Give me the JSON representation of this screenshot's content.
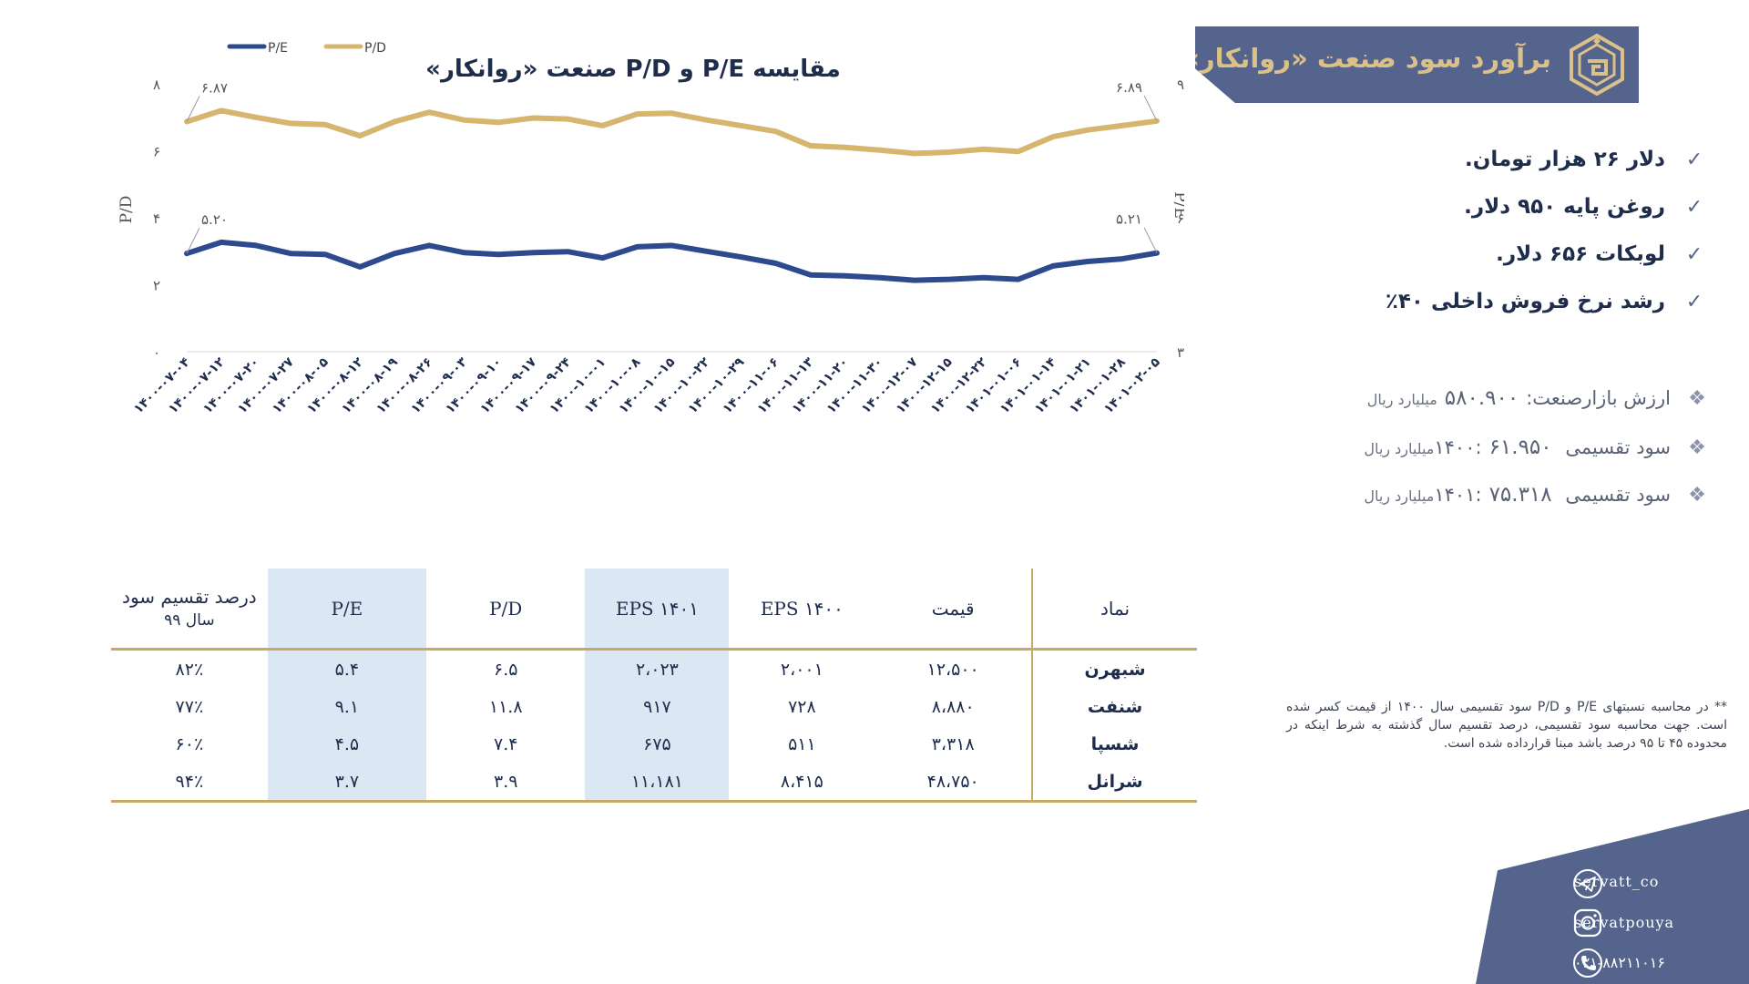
{
  "header": {
    "title": "برآورد سود صنعت «روانکار»"
  },
  "assumptions": [
    "دلار ۲۶ هزار تومان.",
    "روغن پایه ۹۵۰ دلار.",
    "لوبکات ۶۵۶ دلار.",
    "رشد نرخ فروش داخلی ۴۰٪"
  ],
  "stats": [
    {
      "label": "ارزش بازارصنعت:",
      "value": "۵۸۰.۹۰۰",
      "unit": "میلیارد ریال"
    },
    {
      "label": "سود تقسیمی ۱۴۰۰:",
      "value": "۶۱.۹۵۰",
      "unit": "میلیارد ریال"
    },
    {
      "label": "سود تقسیمی ۱۴۰۱:",
      "value": "۷۵.۳۱۸",
      "unit": "میلیارد ریال"
    }
  ],
  "chart_data": {
    "type": "line",
    "title": "مقایسه P/E و P/D صنعت «روانکار»",
    "xlabel": "",
    "ylabel_left": "P/D",
    "ylabel_right": "P/E",
    "categories": [
      "۱۴۰۰-۰۷-۰۴",
      "۱۴۰۰-۰۷-۱۲",
      "۱۴۰۰-۰۷-۲۰",
      "۱۴۰۰-۰۷-۲۷",
      "۱۴۰۰-۰۸-۰۵",
      "۱۴۰۰-۰۸-۱۲",
      "۱۴۰۰-۰۸-۱۹",
      "۱۴۰۰-۰۸-۲۶",
      "۱۴۰۰-۰۹-۰۳",
      "۱۴۰۰-۰۹-۱۰",
      "۱۴۰۰-۰۹-۱۷",
      "۱۴۰۰-۰۹-۲۴",
      "۱۴۰۰-۱۰-۰۱",
      "۱۴۰۰-۱۰-۰۸",
      "۱۴۰۰-۱۰-۱۵",
      "۱۴۰۰-۱۰-۲۲",
      "۱۴۰۰-۱۰-۲۹",
      "۱۴۰۰-۱۱-۰۶",
      "۱۴۰۰-۱۱-۱۳",
      "۱۴۰۰-۱۱-۲۰",
      "۱۴۰۰-۱۱-۳۰",
      "۱۴۰۰-۱۲-۰۷",
      "۱۴۰۰-۱۲-۱۵",
      "۱۴۰۰-۱۲-۲۲",
      "۱۴۰۱-۰۱-۰۶",
      "۱۴۰۱-۰۱-۱۴",
      "۱۴۰۱-۰۱-۲۱",
      "۱۴۰۱-۰۱-۲۸",
      "۱۴۰۱-۰۲-۰۵"
    ],
    "left_axis": {
      "min": 0,
      "max": 8,
      "ticks": [
        "۰",
        "۲",
        "۴",
        "۶",
        "۸"
      ]
    },
    "right_axis": {
      "min": 3,
      "max": 9,
      "ticks": [
        "۳",
        "۶",
        "۹"
      ]
    },
    "series": [
      {
        "name": "P/E",
        "axis": "right",
        "color": "#2e4a8f",
        "values": [
          5.2,
          5.45,
          5.38,
          5.2,
          5.18,
          4.9,
          5.2,
          5.38,
          5.22,
          5.18,
          5.22,
          5.24,
          5.1,
          5.35,
          5.38,
          5.25,
          5.12,
          4.98,
          4.72,
          4.7,
          4.66,
          4.6,
          4.62,
          4.66,
          4.62,
          4.92,
          5.02,
          5.08,
          5.21
        ],
        "start_label": "۵.۲۰",
        "end_label": "۵.۲۱"
      },
      {
        "name": "P/D",
        "axis": "left",
        "color": "#d6b56f",
        "values": [
          6.87,
          7.2,
          7.0,
          6.82,
          6.78,
          6.45,
          6.87,
          7.15,
          6.92,
          6.85,
          6.98,
          6.95,
          6.75,
          7.1,
          7.12,
          6.92,
          6.75,
          6.58,
          6.15,
          6.1,
          6.02,
          5.92,
          5.96,
          6.05,
          5.98,
          6.42,
          6.62,
          6.75,
          6.89
        ],
        "start_label": "۶.۸۷",
        "end_label": "۶.۸۹"
      }
    ]
  },
  "table": {
    "headers": {
      "symbol": "نماد",
      "price": "قیمت",
      "eps1400": "EPS ۱۴۰۰",
      "eps1401": "EPS ۱۴۰۱",
      "pd": "P/D",
      "pe": "P/E",
      "dividend": "درصد تقسیم سود",
      "dividend_sub": "سال ۹۹"
    },
    "rows": [
      {
        "symbol": "شبهرن",
        "price": "۱۲،۵۰۰",
        "eps1400": "۲،۰۰۱",
        "eps1401": "۲،۰۲۳",
        "pd": "۶.۵",
        "pe": "۵.۴",
        "dividend": "۸۲٪"
      },
      {
        "symbol": "شنفت",
        "price": "۸،۸۸۰",
        "eps1400": "۷۲۸",
        "eps1401": "۹۱۷",
        "pd": "۱۱.۸",
        "pe": "۹.۱",
        "dividend": "۷۷٪"
      },
      {
        "symbol": "شسپا",
        "price": "۳،۳۱۸",
        "eps1400": "۵۱۱",
        "eps1401": "۶۷۵",
        "pd": "۷.۴",
        "pe": "۴.۵",
        "dividend": "۶۰٪"
      },
      {
        "symbol": "شرانل",
        "price": "۴۸،۷۵۰",
        "eps1400": "۸،۴۱۵",
        "eps1401": "۱۱،۱۸۱",
        "pd": "۳.۹",
        "pe": "۳.۷",
        "dividend": "۹۴٪"
      }
    ]
  },
  "footnote": "** در محاسبه نسبتهای P/E و P/D سود تقسیمی سال ۱۴۰۰ از قیمت کسر شده است. جهت محاسبه سود تقسیمی، درصد تقسیم سال گذشته به شرط اینکه در محدوده ۴۵ تا ۹۵ درصد باشد مبنا قرارداده شده است.",
  "contacts": {
    "telegram": "servatt_co",
    "instagram": "servatpouya",
    "phone": "۰۲۱-۸۸۲۱۱۰۱۶"
  },
  "colors": {
    "navy": "#54648c",
    "gold": "#d6b56f",
    "pe_line": "#2e4a8f",
    "table_shade": "#dbe8f4"
  }
}
